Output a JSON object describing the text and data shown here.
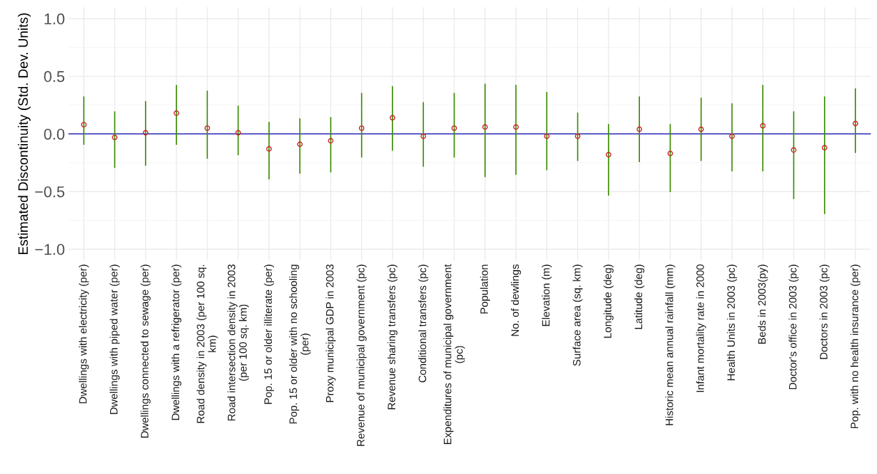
{
  "chart_data": {
    "type": "scatter",
    "ylabel": "Estimated Discontinuity (Std. Dev. Units)",
    "categories": [
      "Dwellings with electricity (per)",
      "Dwellings with piped water (per)",
      "Dwellings connected to sewage (per)",
      "Dwellings with a refrigerator (per)",
      "Road density in 2003 (per 100 sq.\nkm)",
      "Road intersection density in 2003\n(per 100 sq. km)",
      "Pop. 15 or older illiterate (per)",
      "Pop. 15 or older with no schooling\n(per)",
      "Proxy municipal GDP in 2003",
      "Revenue of municipal government (pc)",
      "Revenue sharing transfers (pc)",
      "Conditional transfers (pc)",
      "Expenditures of municipal government\n(pc)",
      "Population",
      "No. of dewlings",
      "Elevation (m)",
      "Surface area (sq. km)",
      "Longitude (deg)",
      "Latitude (deg)",
      "Historic mean annual rainfall (mm)",
      "Infant mortality rate in 2000",
      "Health Units in 2003 (pc)",
      "Beds in 2003(py)",
      "Doctor's office in 2003 (pc)",
      "Doctors in 2003 (pc)",
      "Pop. with no health insurance (per)"
    ],
    "series": [
      {
        "color": "#cc2222",
        "values": [
          0.08,
          -0.03,
          0.01,
          0.18,
          0.05,
          0.01,
          -0.13,
          -0.09,
          -0.06,
          0.05,
          0.14,
          -0.02,
          0.05,
          0.06,
          0.06,
          -0.02,
          -0.02,
          -0.18,
          0.04,
          -0.17,
          0.04,
          -0.02,
          0.07,
          -0.14,
          -0.12,
          0.09
        ],
        "errors": [
          [
            -0.09,
            0.32
          ],
          [
            -0.29,
            0.19
          ],
          [
            -0.27,
            0.28
          ],
          [
            -0.09,
            0.42
          ],
          [
            -0.21,
            0.37
          ],
          [
            -0.18,
            0.24
          ],
          [
            -0.39,
            0.1
          ],
          [
            -0.34,
            0.13
          ],
          [
            -0.33,
            0.14
          ],
          [
            -0.2,
            0.35
          ],
          [
            -0.14,
            0.41
          ],
          [
            -0.28,
            0.27
          ],
          [
            -0.2,
            0.35
          ],
          [
            -0.37,
            0.43
          ],
          [
            -0.35,
            0.42
          ],
          [
            -0.31,
            0.36
          ],
          [
            -0.23,
            0.18
          ],
          [
            -0.53,
            0.08
          ],
          [
            -0.24,
            0.32
          ],
          [
            -0.5,
            0.08
          ],
          [
            -0.23,
            0.31
          ],
          [
            -0.32,
            0.26
          ],
          [
            -0.32,
            0.42
          ],
          [
            -0.56,
            0.19
          ],
          [
            -0.69,
            0.32
          ],
          [
            -0.16,
            0.39
          ]
        ]
      }
    ],
    "ylim": [
      -1.1,
      1.1
    ],
    "yticks": [
      {
        "value": 1.0,
        "label": "1.0"
      },
      {
        "value": 0.5,
        "label": "0.5"
      },
      {
        "value": 0.0,
        "label": "0.0"
      },
      {
        "value": -0.5,
        "label": "−0.5"
      },
      {
        "value": -1.0,
        "label": "−1.0"
      }
    ],
    "ref_lines": [
      {
        "axis": "y",
        "value": 0,
        "color": "#0000aa"
      }
    ],
    "grid": true,
    "marker": "circle",
    "legend": false
  }
}
